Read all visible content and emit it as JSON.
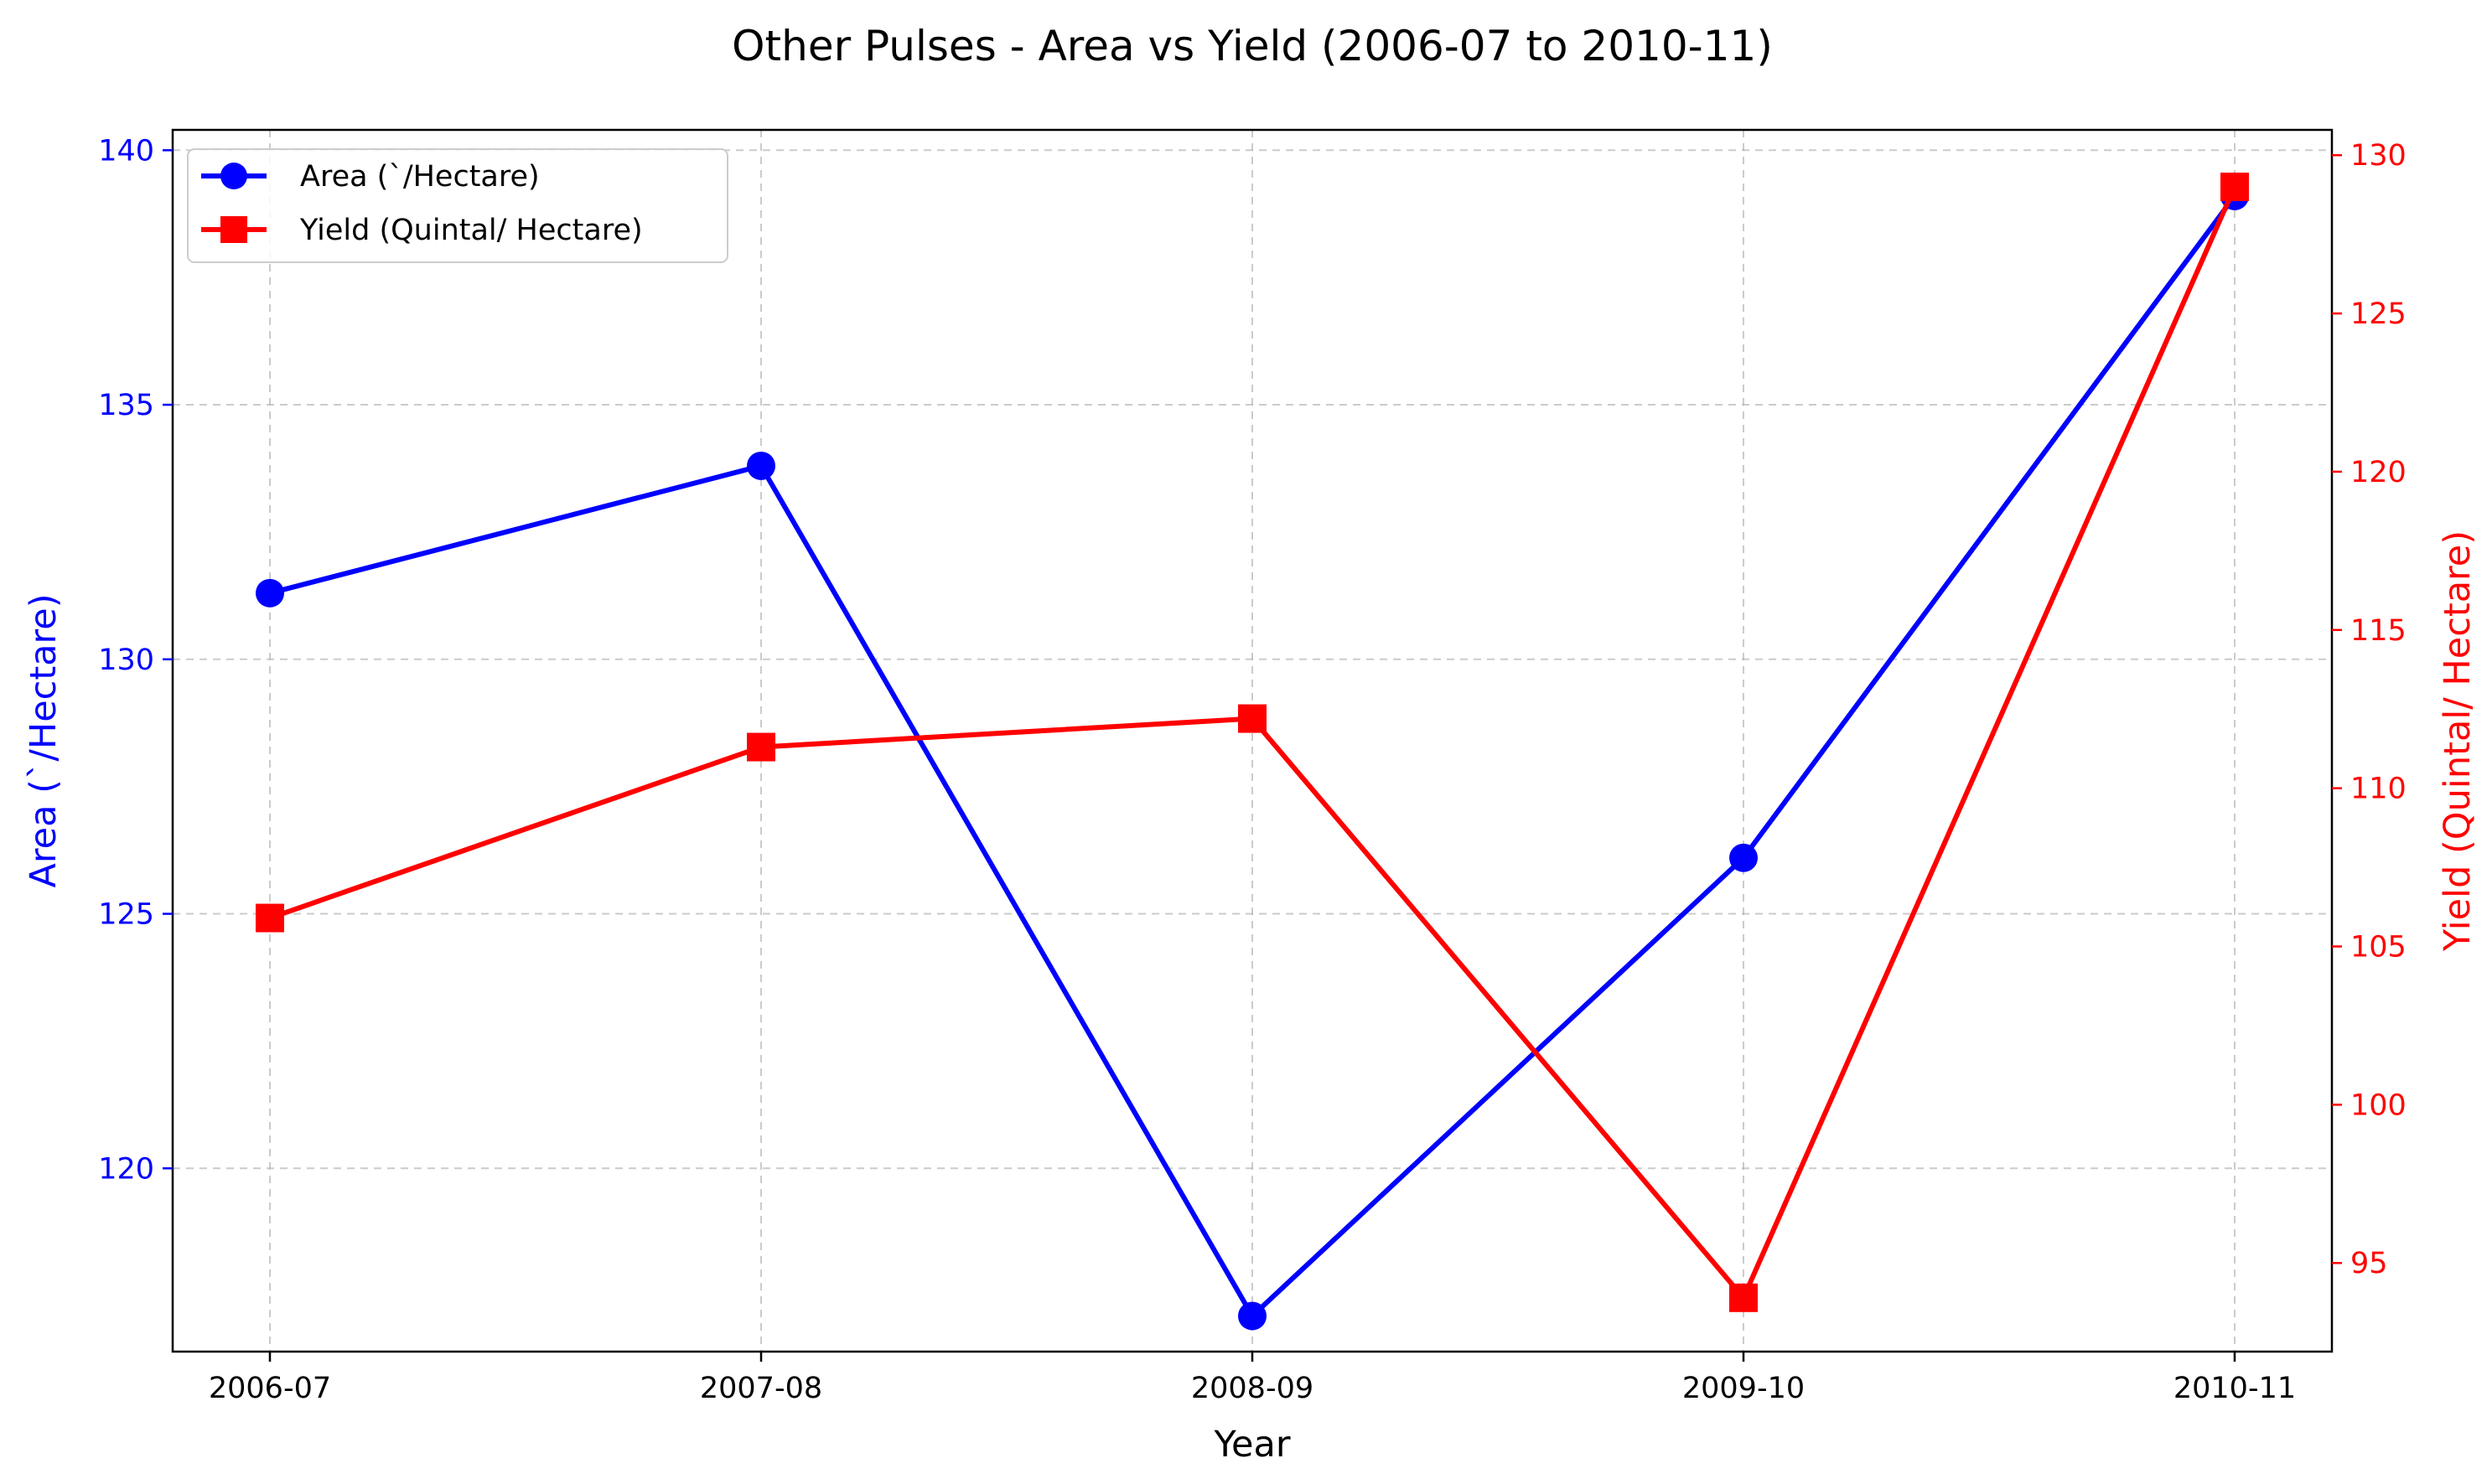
{
  "chart_data": {
    "type": "line",
    "title": "Other Pulses - Area vs Yield (2006-07 to 2010-11)",
    "xlabel": "Year",
    "categories": [
      "2006-07",
      "2007-08",
      "2008-09",
      "2009-10",
      "2010-11"
    ],
    "grid": true,
    "legend": {
      "position": "top-left",
      "entries": [
        "Area (`/Hectare)",
        "Yield (Quintal/ Hectare)"
      ]
    },
    "y_left": {
      "label": "Area (`/Hectare)",
      "color": "#0000ff",
      "ylim": [
        116.4,
        140.4
      ],
      "ticks": [
        120,
        125,
        130,
        135,
        140
      ]
    },
    "y_right": {
      "label": "Yield (Quintal/ Hectare)",
      "color": "#ff0000",
      "ylim": [
        92.2,
        130.8
      ],
      "ticks": [
        95,
        100,
        105,
        110,
        115,
        120,
        125,
        130
      ]
    },
    "series": [
      {
        "name": "Area (`/Hectare)",
        "axis": "left",
        "color": "#0000ff",
        "marker": "circle",
        "values": [
          131.3,
          133.8,
          117.1,
          126.1,
          139.1
        ]
      },
      {
        "name": "Yield (Quintal/ Hectare)",
        "axis": "right",
        "color": "#ff0000",
        "marker": "square",
        "values": [
          105.9,
          111.3,
          112.2,
          93.9,
          129.0
        ]
      }
    ]
  }
}
